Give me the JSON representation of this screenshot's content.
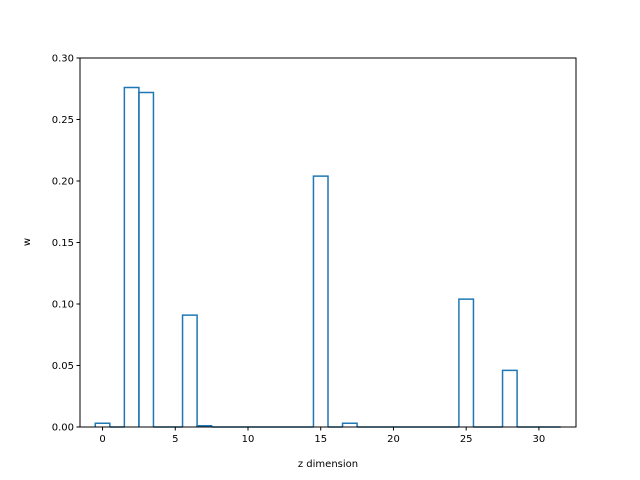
{
  "chart_data": {
    "type": "bar",
    "style": "step-outline",
    "xlabel": "z dimension",
    "ylabel": "w",
    "xlim": [
      -1.55,
      32.55
    ],
    "ylim": [
      0.0,
      0.3
    ],
    "x": [
      0,
      1,
      2,
      3,
      4,
      5,
      6,
      7,
      8,
      9,
      10,
      11,
      12,
      13,
      14,
      15,
      16,
      17,
      18,
      19,
      20,
      21,
      22,
      23,
      24,
      25,
      26,
      27,
      28,
      29,
      30,
      31
    ],
    "values": [
      0.003,
      0.0,
      0.276,
      0.272,
      0.0,
      0.0,
      0.091,
      0.001,
      0.0,
      0.0,
      0.0,
      0.0,
      0.0,
      0.0,
      0.0,
      0.204,
      0.0,
      0.003,
      0.0,
      0.0,
      0.0,
      0.0,
      0.0,
      0.0,
      0.0,
      0.104,
      0.0,
      0.0,
      0.046,
      0.0,
      0.0,
      0.0
    ],
    "x_ticks": [
      0,
      5,
      10,
      15,
      20,
      25,
      30
    ],
    "x_tick_labels": [
      "0",
      "5",
      "10",
      "15",
      "20",
      "25",
      "30"
    ],
    "y_ticks": [
      0.0,
      0.05,
      0.1,
      0.15,
      0.2,
      0.25,
      0.3
    ],
    "y_tick_labels": [
      "0.00",
      "0.05",
      "0.10",
      "0.15",
      "0.20",
      "0.25",
      "0.30"
    ],
    "grid": false,
    "line_color": "#1f77b4"
  }
}
